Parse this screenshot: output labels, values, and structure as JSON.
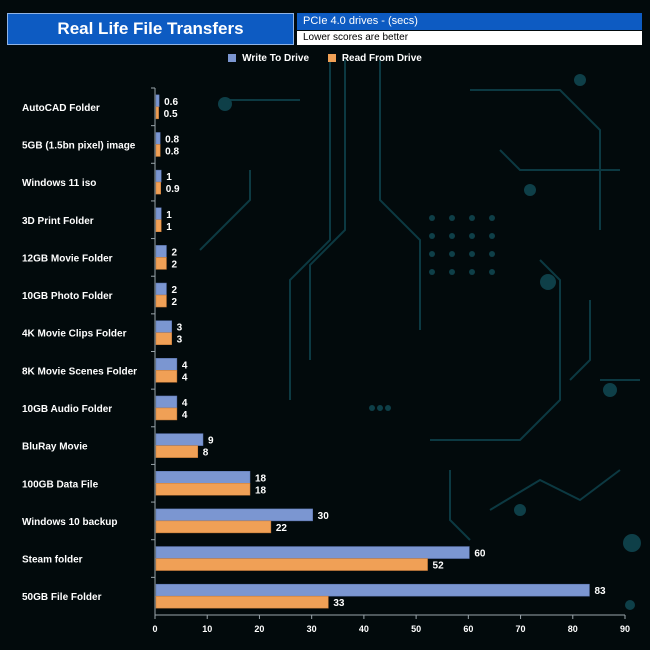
{
  "header": {
    "title": "Real Life File Transfers",
    "subtitle": "PCIe 4.0 drives - (secs)",
    "note": "Lower scores are better"
  },
  "colors": {
    "write": "#7b96d1",
    "read": "#f0a056",
    "title_bg": "#0d5bc2",
    "text": "#ffffff",
    "circuit": "#0e3f48"
  },
  "chart_data": {
    "type": "bar",
    "orientation": "horizontal",
    "categories": [
      "AutoCAD Folder",
      "5GB (1.5bn pixel) image",
      "Windows 11 iso",
      "3D Print Folder",
      "12GB Movie Folder",
      "10GB Photo Folder",
      "4K Movie Clips Folder",
      "8K Movie Scenes Folder",
      "10GB Audio Folder",
      "BluRay Movie",
      "100GB Data File",
      "Windows 10 backup",
      "Steam folder",
      "50GB File Folder"
    ],
    "series": [
      {
        "name": "Write To  Drive",
        "values": [
          0.6,
          0.8,
          1,
          1,
          2,
          2,
          3,
          4,
          4,
          9,
          18,
          30,
          60,
          83
        ]
      },
      {
        "name": "Read From  Drive",
        "values": [
          0.5,
          0.8,
          0.9,
          1,
          2,
          2,
          3,
          4,
          4,
          8,
          18,
          22,
          52,
          33
        ]
      }
    ],
    "xlim": [
      0,
      90
    ],
    "xticks": [
      0,
      10,
      20,
      30,
      40,
      50,
      60,
      70,
      80,
      90
    ],
    "legend_position": "top-center",
    "grid": false
  }
}
